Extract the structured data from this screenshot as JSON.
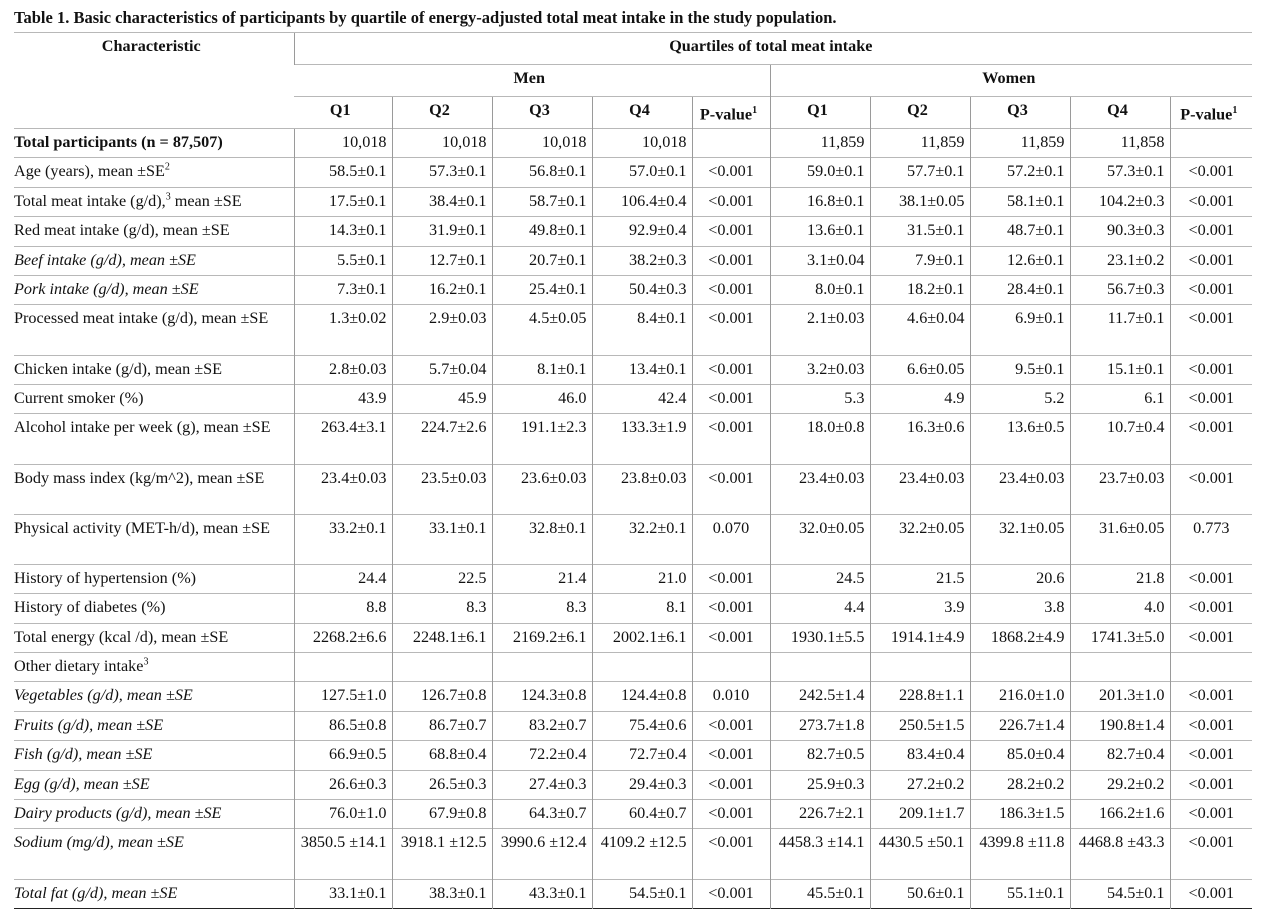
{
  "caption": "Table 1.  Basic characteristics of participants by quartile of energy-adjusted total meat intake in the study population.",
  "header": {
    "characteristic": "Characteristic",
    "quartiles_title": "Quartiles of total meat intake",
    "men": "Men",
    "women": "Women",
    "cols": [
      "Q1",
      "Q2",
      "Q3",
      "Q4",
      "P-value",
      "Q1",
      "Q2",
      "Q3",
      "Q4",
      "P-value"
    ],
    "pvalue_sup": "1"
  },
  "rows": [
    {
      "label": "Total participants (n = 87,507)",
      "style": "bold",
      "values": [
        "10,018",
        "10,018",
        "10,018",
        "10,018",
        "",
        "11,859",
        "11,859",
        "11,859",
        "11,858",
        ""
      ]
    },
    {
      "label": "Age (years), mean ±SE",
      "sup": "2",
      "values": [
        "58.5±0.1",
        "57.3±0.1",
        "56.8±0.1",
        "57.0±0.1",
        "<0.001",
        "59.0±0.1",
        "57.7±0.1",
        "57.2±0.1",
        "57.3±0.1",
        "<0.001"
      ]
    },
    {
      "label": "Total meat intake (g/d),",
      "sup": "3",
      "label_after": " mean ±SE",
      "values": [
        "17.5±0.1",
        "38.4±0.1",
        "58.7±0.1",
        "106.4±0.4",
        "<0.001",
        "16.8±0.1",
        "38.1±0.05",
        "58.1±0.1",
        "104.2±0.3",
        "<0.001"
      ]
    },
    {
      "label": "Red meat intake (g/d), mean ±SE",
      "values": [
        "14.3±0.1",
        "31.9±0.1",
        "49.8±0.1",
        "92.9±0.4",
        "<0.001",
        "13.6±0.1",
        "31.5±0.1",
        "48.7±0.1",
        "90.3±0.3",
        "<0.001"
      ]
    },
    {
      "label": "Beef intake (g/d), mean ±SE",
      "style": "italic",
      "values": [
        "5.5±0.1",
        "12.7±0.1",
        "20.7±0.1",
        "38.2±0.3",
        "<0.001",
        "3.1±0.04",
        "7.9±0.1",
        "12.6±0.1",
        "23.1±0.2",
        "<0.001"
      ]
    },
    {
      "label": "Pork intake (g/d), mean ±SE",
      "style": "italic",
      "values": [
        "7.3±0.1",
        "16.2±0.1",
        "25.4±0.1",
        "50.4±0.3",
        "<0.001",
        "8.0±0.1",
        "18.2±0.1",
        "28.4±0.1",
        "56.7±0.3",
        "<0.001"
      ]
    },
    {
      "label": "Processed meat intake (g/d), mean ±SE",
      "tall": true,
      "values": [
        "1.3±0.02",
        "2.9±0.03",
        "4.5±0.05",
        "8.4±0.1",
        "<0.001",
        "2.1±0.03",
        "4.6±0.04",
        "6.9±0.1",
        "11.7±0.1",
        "<0.001"
      ]
    },
    {
      "label": "Chicken intake (g/d), mean ±SE",
      "values": [
        "2.8±0.03",
        "5.7±0.04",
        "8.1±0.1",
        "13.4±0.1",
        "<0.001",
        "3.2±0.03",
        "6.6±0.05",
        "9.5±0.1",
        "15.1±0.1",
        "<0.001"
      ]
    },
    {
      "label": "Current smoker (%)",
      "values": [
        "43.9",
        "45.9",
        "46.0",
        "42.4",
        "<0.001",
        "5.3",
        "4.9",
        "5.2",
        "6.1",
        "<0.001"
      ]
    },
    {
      "label": "Alcohol intake per week (g), mean ±SE",
      "tall": true,
      "values": [
        "263.4±3.1",
        "224.7±2.6",
        "191.1±2.3",
        "133.3±1.9",
        "<0.001",
        "18.0±0.8",
        "16.3±0.6",
        "13.6±0.5",
        "10.7±0.4",
        "<0.001"
      ]
    },
    {
      "label": "Body mass index (kg/m^2), mean ±SE",
      "tall": true,
      "values": [
        "23.4±0.03",
        "23.5±0.03",
        "23.6±0.03",
        "23.8±0.03",
        "<0.001",
        "23.4±0.03",
        "23.4±0.03",
        "23.4±0.03",
        "23.7±0.03",
        "<0.001"
      ]
    },
    {
      "label": "Physical activity (MET-h/d), mean ±SE",
      "tall": true,
      "values": [
        "33.2±0.1",
        "33.1±0.1",
        "32.8±0.1",
        "32.2±0.1",
        "0.070",
        "32.0±0.05",
        "32.2±0.05",
        "32.1±0.05",
        "31.6±0.05",
        "0.773"
      ]
    },
    {
      "label": "History of hypertension (%)",
      "values": [
        "24.4",
        "22.5",
        "21.4",
        "21.0",
        "<0.001",
        "24.5",
        "21.5",
        "20.6",
        "21.8",
        "<0.001"
      ]
    },
    {
      "label": "History of diabetes (%)",
      "values": [
        "8.8",
        "8.3",
        "8.3",
        "8.1",
        "<0.001",
        "4.4",
        "3.9",
        "3.8",
        "4.0",
        "<0.001"
      ]
    },
    {
      "label": "Total energy (kcal /d), mean ±SE",
      "values": [
        "2268.2±6.6",
        "2248.1±6.1",
        "2169.2±6.1",
        "2002.1±6.1",
        "<0.001",
        "1930.1±5.5",
        "1914.1±4.9",
        "1868.2±4.9",
        "1741.3±5.0",
        "<0.001"
      ]
    },
    {
      "label": "Other dietary intake",
      "sup": "3",
      "values": [
        "",
        "",
        "",
        "",
        "",
        "",
        "",
        "",
        "",
        ""
      ]
    },
    {
      "label": "Vegetables (g/d), mean ±SE",
      "style": "italic",
      "values": [
        "127.5±1.0",
        "126.7±0.8",
        "124.3±0.8",
        "124.4±0.8",
        "0.010",
        "242.5±1.4",
        "228.8±1.1",
        "216.0±1.0",
        "201.3±1.0",
        "<0.001"
      ]
    },
    {
      "label": "Fruits (g/d), mean ±SE",
      "style": "italic",
      "values": [
        "86.5±0.8",
        "86.7±0.7",
        "83.2±0.7",
        "75.4±0.6",
        "<0.001",
        "273.7±1.8",
        "250.5±1.5",
        "226.7±1.4",
        "190.8±1.4",
        "<0.001"
      ]
    },
    {
      "label": "Fish (g/d), mean ±SE",
      "style": "italic",
      "values": [
        "66.9±0.5",
        "68.8±0.4",
        "72.2±0.4",
        "72.7±0.4",
        "<0.001",
        "82.7±0.5",
        "83.4±0.4",
        "85.0±0.4",
        "82.7±0.4",
        "<0.001"
      ]
    },
    {
      "label": "Egg (g/d), mean ±SE",
      "style": "italic",
      "values": [
        "26.6±0.3",
        "26.5±0.3",
        "27.4±0.3",
        "29.4±0.3",
        "<0.001",
        "25.9±0.3",
        "27.2±0.2",
        "28.2±0.2",
        "29.2±0.2",
        "<0.001"
      ]
    },
    {
      "label": "Dairy products (g/d), mean ±SE",
      "style": "italic",
      "values": [
        "76.0±1.0",
        "67.9±0.8",
        "64.3±0.7",
        "60.4±0.7",
        "<0.001",
        "226.7±2.1",
        "209.1±1.7",
        "186.3±1.5",
        "166.2±1.6",
        "<0.001"
      ]
    },
    {
      "label": "Sodium (mg/d), mean ±SE",
      "style": "italic",
      "tall": true,
      "values": [
        "3850.5 ±14.1",
        "3918.1 ±12.5",
        "3990.6 ±12.4",
        "4109.2 ±12.5",
        "<0.001",
        "4458.3 ±14.1",
        "4430.5 ±50.1",
        "4399.8 ±11.8",
        "4468.8 ±43.3",
        "<0.001"
      ]
    },
    {
      "label": "Total fat (g/d), mean ±SE",
      "style": "italic",
      "values": [
        "33.1±0.1",
        "38.3±0.1",
        "43.3±0.1",
        "54.5±0.1",
        "<0.001",
        "45.5±0.1",
        "50.6±0.1",
        "55.1±0.1",
        "54.5±0.1",
        "<0.001"
      ]
    }
  ]
}
